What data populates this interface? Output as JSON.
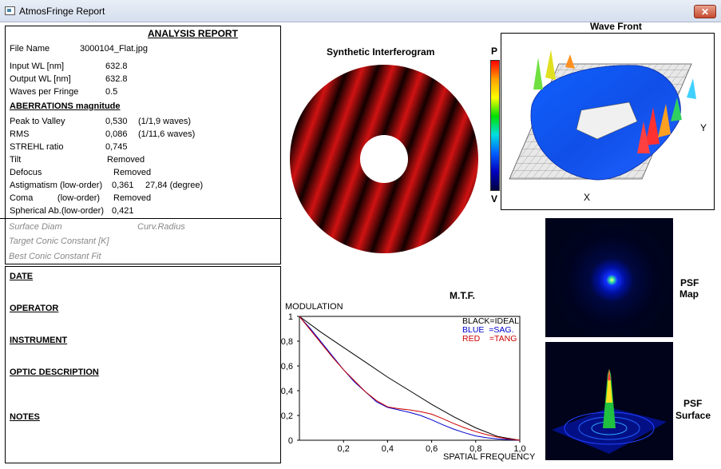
{
  "window": {
    "title": "AtmosFringe  Report",
    "close_label": "✕"
  },
  "report": {
    "title": "ANALYSIS  REPORT",
    "file_name_label": "File Name",
    "file_name_value": "3000104_Flat.jpg",
    "input_wl_label": "Input  WL [nm]",
    "input_wl_value": "632.8",
    "output_wl_label": "Output WL [nm]",
    "output_wl_value": "632.8",
    "waves_per_fringe_label": "Waves per Fringe",
    "waves_per_fringe_value": "0.5",
    "aberrations_heading": "ABERRATIONS magnitude",
    "ptv_label": "Peak to Valley",
    "ptv_value": "0,530",
    "ptv_waves": "(1/1,9 waves)",
    "rms_label": "RMS",
    "rms_value": "0,086",
    "rms_waves": "(1/11,6 waves)",
    "strehl_label": "STREHL ratio",
    "strehl_value": "0,745",
    "tilt_label": "Tilt",
    "tilt_value": "Removed",
    "defocus_label": "Defocus",
    "defocus_value": "Removed",
    "astig_label": "Astigmatism  (low-order)",
    "astig_value": "0,361",
    "astig_deg": "27,84  (degree)",
    "coma_label": "Coma          (low-order)",
    "coma_value": "Removed",
    "spherical_label": "Spherical Ab.(low-order)",
    "spherical_value": "0,421",
    "surface_diam": "Surface Diam",
    "curv_radius": "Curv.Radius",
    "target_conic": "Target Conic Constant [K]",
    "best_conic": "Best Conic Constant Fit"
  },
  "notes_box": {
    "date": "DATE",
    "operator": "OPERATOR",
    "instrument": "INSTRUMENT",
    "optic_description": "OPTIC DESCRIPTION",
    "notes": "NOTES"
  },
  "interferogram": {
    "title": "Synthetic Interferogram"
  },
  "colorbar": {
    "top_label": "P",
    "bottom_label": "V"
  },
  "wavefront": {
    "title": "Wave Front",
    "x_label": "X",
    "y_label": "Y"
  },
  "psf_map": {
    "label_line1": "PSF",
    "label_line2": "Map"
  },
  "psf_surface": {
    "label_line1": "PSF",
    "label_line2": "Surface"
  },
  "chart_data": {
    "type": "line",
    "title": "M.T.F.",
    "ylabel": "MODULATION",
    "xlabel": "SPATIAL FREQUENCY",
    "xlim": [
      0,
      1.0
    ],
    "ylim": [
      0,
      1
    ],
    "x_ticks": [
      "0,2",
      "0,4",
      "0,6",
      "0,8",
      "1,0"
    ],
    "y_ticks": [
      "0",
      "0,2",
      "0,4",
      "0,6",
      "0,8",
      "1"
    ],
    "legend": [
      "BLACK=IDEAL",
      "BLUE  =SAG.",
      "RED    =TANG"
    ],
    "legend_position": "top-right",
    "series": [
      {
        "name": "IDEAL",
        "color": "#000000",
        "x": [
          0,
          0.1,
          0.2,
          0.3,
          0.4,
          0.5,
          0.6,
          0.7,
          0.8,
          0.9,
          1.0
        ],
        "y": [
          1.0,
          0.87,
          0.75,
          0.63,
          0.51,
          0.4,
          0.29,
          0.19,
          0.1,
          0.03,
          0.0
        ]
      },
      {
        "name": "SAG.",
        "color": "#0000cc",
        "x": [
          0,
          0.05,
          0.1,
          0.15,
          0.2,
          0.25,
          0.3,
          0.35,
          0.4,
          0.45,
          0.5,
          0.55,
          0.6,
          0.65,
          0.7,
          0.75,
          0.8,
          0.85,
          0.9,
          0.95,
          1.0
        ],
        "y": [
          1.0,
          0.9,
          0.79,
          0.68,
          0.57,
          0.47,
          0.39,
          0.31,
          0.265,
          0.245,
          0.225,
          0.2,
          0.165,
          0.125,
          0.09,
          0.06,
          0.035,
          0.02,
          0.01,
          0.005,
          0.0
        ]
      },
      {
        "name": "TANG",
        "color": "#cc0000",
        "x": [
          0,
          0.05,
          0.1,
          0.15,
          0.2,
          0.25,
          0.3,
          0.35,
          0.4,
          0.45,
          0.5,
          0.55,
          0.6,
          0.65,
          0.7,
          0.75,
          0.8,
          0.85,
          0.9,
          0.95,
          1.0
        ],
        "y": [
          1.0,
          0.89,
          0.78,
          0.67,
          0.57,
          0.48,
          0.39,
          0.32,
          0.27,
          0.255,
          0.245,
          0.23,
          0.21,
          0.175,
          0.135,
          0.1,
          0.07,
          0.045,
          0.025,
          0.01,
          0.0
        ]
      }
    ]
  }
}
